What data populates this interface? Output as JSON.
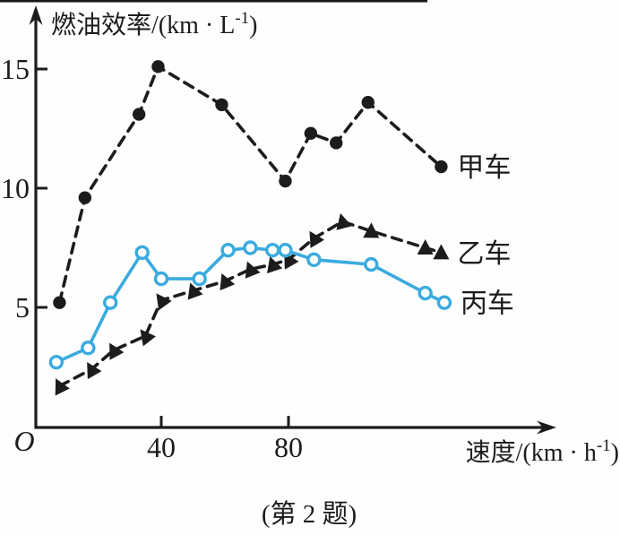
{
  "figure": {
    "caption": "(第 2 题)",
    "background": "#fefefe",
    "ink_color": "#1c1c1c",
    "accent_color": "#3aabdf"
  },
  "chart_data": {
    "type": "line",
    "title": "",
    "xlabel": "速度/(km·h⁻¹)",
    "ylabel": "燃油效率/(km·L⁻¹)",
    "origin_label": "O",
    "x_axis": {
      "label_main": "速度/(km · h",
      "label_sup": "-1",
      "label_close": ")",
      "ticks": [
        40,
        80
      ],
      "range": [
        0,
        160
      ]
    },
    "y_axis": {
      "label_main": "燃油效率/(km · L",
      "label_sup": "-1",
      "label_close": ")",
      "ticks": [
        5,
        10,
        15
      ],
      "range": [
        0,
        17
      ]
    },
    "grid": false,
    "legend_position": "right-of-last-point",
    "series": [
      {
        "name": "甲车",
        "marker": "dot",
        "line": "dashed",
        "color": "#1c1c1c",
        "points": [
          [
            8,
            5.2
          ],
          [
            16,
            9.6
          ],
          [
            33,
            13.1
          ],
          [
            39,
            15.1
          ],
          [
            59,
            13.5
          ],
          [
            79,
            10.3
          ],
          [
            87,
            12.3
          ],
          [
            95,
            11.9
          ],
          [
            105,
            13.6
          ],
          [
            128,
            10.9
          ]
        ]
      },
      {
        "name": "乙车",
        "marker": "triangle",
        "line": "dashed",
        "color": "#1c1c1c",
        "points": [
          [
            8,
            1.7
          ],
          [
            18,
            2.4
          ],
          [
            25,
            3.2
          ],
          [
            35,
            3.8
          ],
          [
            40,
            5.3
          ],
          [
            50,
            5.7
          ],
          [
            60,
            6.1
          ],
          [
            68,
            6.6
          ],
          [
            75,
            6.8
          ],
          [
            80,
            7.0
          ],
          [
            88,
            7.9
          ],
          [
            97,
            8.6
          ],
          [
            106,
            8.2
          ],
          [
            123,
            7.5
          ],
          [
            128,
            7.3
          ]
        ]
      },
      {
        "name": "丙车",
        "marker": "open-circle",
        "line": "solid",
        "color": "#3aabdf",
        "points": [
          [
            7,
            2.7
          ],
          [
            17,
            3.3
          ],
          [
            24,
            5.2
          ],
          [
            34,
            7.3
          ],
          [
            40,
            6.2
          ],
          [
            52,
            6.2
          ],
          [
            61,
            7.4
          ],
          [
            68,
            7.5
          ],
          [
            75,
            7.4
          ],
          [
            79,
            7.4
          ],
          [
            88,
            7.0
          ],
          [
            106,
            6.8
          ],
          [
            123,
            5.6
          ],
          [
            129,
            5.2
          ]
        ]
      }
    ]
  }
}
